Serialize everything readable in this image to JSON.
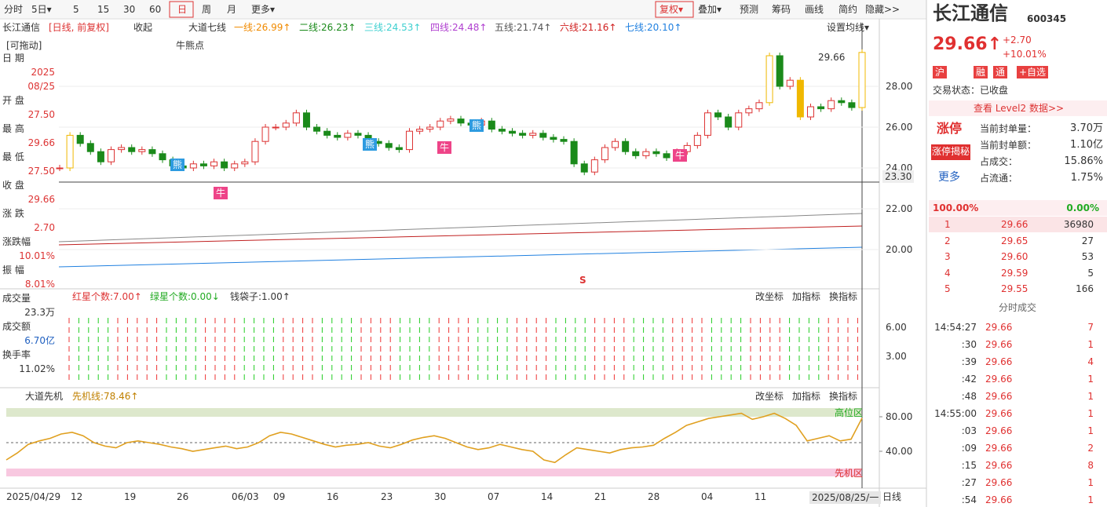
{
  "toolbar": {
    "periods": [
      "分时",
      "5日▾",
      "5",
      "15",
      "30",
      "60",
      "日",
      "周",
      "月",
      "更多▾"
    ],
    "tools": [
      "复权▾",
      "叠加▾",
      "预测",
      "筹码",
      "画线",
      "简约",
      "隐藏>>"
    ]
  },
  "main": {
    "name": "长江通信",
    "period": "[日线, 前复权]",
    "collapse": "收起",
    "indicator": "大道七线",
    "ma": [
      {
        "label": "一线:26.99↑",
        "color": "#f08a00"
      },
      {
        "label": "二线:26.23↑",
        "color": "#1a8a1a"
      },
      {
        "label": "三线:24.53↑",
        "color": "#3fd0d0"
      },
      {
        "label": "四线:24.48↑",
        "color": "#b040d0"
      },
      {
        "label": "五线:21.74↑",
        "color": "#555555"
      },
      {
        "label": "六线:21.16↑",
        "color": "#d02020"
      },
      {
        "label": "七线:20.10↑",
        "color": "#2080e0"
      }
    ],
    "set_ma": "设置均线▾",
    "drag": "[可拖动]",
    "bull_bear": "牛熊点",
    "last_price": "29.66",
    "cross_price": "23.30",
    "sell": "S",
    "markers": [
      "熊",
      "熊",
      "熊",
      "牛",
      "牛",
      "牛"
    ],
    "yticks": [
      {
        "value": 28,
        "label": "28.00"
      },
      {
        "value": 26,
        "label": "26.00"
      },
      {
        "value": 24,
        "label": "24.00"
      },
      {
        "value": 22,
        "label": "22.00"
      },
      {
        "value": 20,
        "label": "20.00"
      }
    ],
    "ylim": [
      18.6,
      30.6
    ],
    "closes": [
      24.0,
      25.6,
      25.2,
      24.8,
      24.3,
      24.9,
      25.0,
      24.8,
      24.9,
      24.7,
      24.4,
      24.1,
      24.0,
      24.2,
      24.1,
      24.3,
      24.0,
      24.2,
      24.3,
      25.3,
      26.0,
      26.0,
      26.2,
      26.7,
      26.0,
      25.8,
      25.6,
      25.5,
      25.7,
      25.6,
      25.3,
      25.2,
      25.0,
      24.9,
      25.8,
      25.9,
      26.0,
      26.3,
      26.4,
      26.2,
      26.1,
      26.3,
      25.9,
      25.8,
      25.7,
      25.6,
      25.7,
      25.5,
      25.4,
      25.3,
      24.2,
      23.8,
      24.4,
      25.0,
      25.3,
      24.8,
      24.6,
      24.8,
      24.7,
      24.5,
      24.8,
      25.1,
      25.6,
      26.7,
      26.5,
      26.0,
      26.7,
      26.9,
      27.2,
      29.5,
      28.0,
      28.3,
      26.5,
      27.0,
      26.9,
      27.3,
      27.2,
      26.96,
      29.66
    ]
  },
  "info": {
    "rows": [
      [
        "日 期",
        "2025",
        "08/25"
      ],
      [
        "开 盘",
        "27.50"
      ],
      [
        "最 高",
        "29.66"
      ],
      [
        "最 低",
        "27.50"
      ],
      [
        "收 盘",
        "29.66"
      ],
      [
        "涨 跌",
        "2.70"
      ],
      [
        "涨跌幅",
        "10.01%"
      ],
      [
        "振 幅",
        "8.01%"
      ]
    ],
    "vol": [
      [
        "成交量",
        "23.3万"
      ],
      [
        "成交额",
        "6.70亿"
      ],
      [
        "换手率",
        "11.02%"
      ]
    ]
  },
  "vol_panel": {
    "items": [
      "红星个数:7.00↑",
      "绿星个数:0.00↓",
      "钱袋子:1.00↑"
    ],
    "buttons": [
      "改坐标",
      "加指标",
      "换指标"
    ],
    "yticks": [
      "6.00",
      "3.00"
    ]
  },
  "osc_panel": {
    "name": "大道先机",
    "line": "先机线:78.46↑",
    "buttons": [
      "改坐标",
      "加指标",
      "换指标"
    ],
    "yticks": [
      {
        "value": 80,
        "label": "80.00"
      },
      {
        "value": 40,
        "label": "40.00"
      }
    ],
    "high_zone": "高位区",
    "low_zone": "先机区",
    "values": [
      30,
      38,
      48,
      52,
      55,
      60,
      62,
      58,
      50,
      46,
      44,
      50,
      52,
      50,
      48,
      45,
      43,
      40,
      42,
      44,
      46,
      43,
      45,
      50,
      58,
      62,
      60,
      56,
      52,
      48,
      45,
      47,
      48,
      50,
      46,
      44,
      48,
      53,
      56,
      58,
      55,
      50,
      45,
      42,
      44,
      48,
      45,
      42,
      40,
      30,
      27,
      36,
      44,
      42,
      40,
      38,
      42,
      44,
      45,
      47,
      55,
      62,
      70,
      74,
      78,
      80,
      82,
      84,
      77,
      80,
      84,
      78,
      70,
      52,
      55,
      58,
      52,
      54,
      78.46
    ]
  },
  "dates": [
    "2025/04/29",
    "12",
    "19",
    "26",
    "06/03",
    "09",
    "16",
    "23",
    "30",
    "07",
    "14",
    "21",
    "28",
    "04",
    "11",
    "2025/08/25/一",
    "日线"
  ],
  "quote": {
    "name": "长江通信",
    "code": "600345",
    "price": "29.66↑",
    "change": "+2.70",
    "pct": "+10.01%",
    "badges": [
      "沪",
      "融",
      "通",
      "+自选"
    ],
    "status": "交易状态：已收盘",
    "level2": "查看 Level2 数据>>",
    "limit": "涨停",
    "reveal": "涨停揭秘",
    "more": "更多",
    "stats": [
      [
        "当前封单量：",
        "3.70万"
      ],
      [
        "当前封单额：",
        "1.10亿"
      ],
      [
        "占成交：",
        "15.86%"
      ],
      [
        "占流通：",
        "1.75%"
      ]
    ],
    "ratio": [
      "100.00%",
      "0.00%"
    ],
    "bids": [
      [
        "1",
        "29.66",
        "36980"
      ],
      [
        "2",
        "29.65",
        "27"
      ],
      [
        "3",
        "29.60",
        "53"
      ],
      [
        "4",
        "29.59",
        "5"
      ],
      [
        "5",
        "29.55",
        "166"
      ]
    ],
    "trades_title": "分时成交",
    "trades": [
      [
        "14:54:27",
        "29.66",
        "7"
      ],
      [
        ":30",
        "29.66",
        "1"
      ],
      [
        ":39",
        "29.66",
        "4"
      ],
      [
        ":42",
        "29.66",
        "1"
      ],
      [
        ":48",
        "29.66",
        "1"
      ],
      [
        "14:55:00",
        "29.66",
        "1"
      ],
      [
        ":03",
        "29.66",
        "1"
      ],
      [
        ":09",
        "29.66",
        "2"
      ],
      [
        ":15",
        "29.66",
        "8"
      ],
      [
        ":27",
        "29.66",
        "1"
      ],
      [
        ":54",
        "29.66",
        "1"
      ]
    ]
  }
}
